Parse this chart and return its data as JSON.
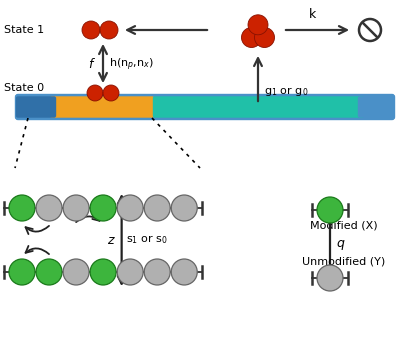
{
  "bg_color": "#ffffff",
  "state1_label": "State 1",
  "state0_label": "State 0",
  "f_label": "f",
  "h_label": "h(n$_p$,n$_x$)",
  "k_label": "k",
  "g_label": "g$_1$ or g$_0$",
  "z_label": "z",
  "s_label": "s$_1$ or s$_0$",
  "q_label": "q",
  "modified_label": "Modified (X)",
  "unmodified_label": "Unmodified (Y)",
  "red_color": "#cc2200",
  "green_color": "#3db53d",
  "gray_color": "#b0b0b0",
  "gold_color": "#f0a020",
  "teal_color": "#20c0a8",
  "blue_color": "#4a90c8",
  "dkblue_color": "#3070a8"
}
